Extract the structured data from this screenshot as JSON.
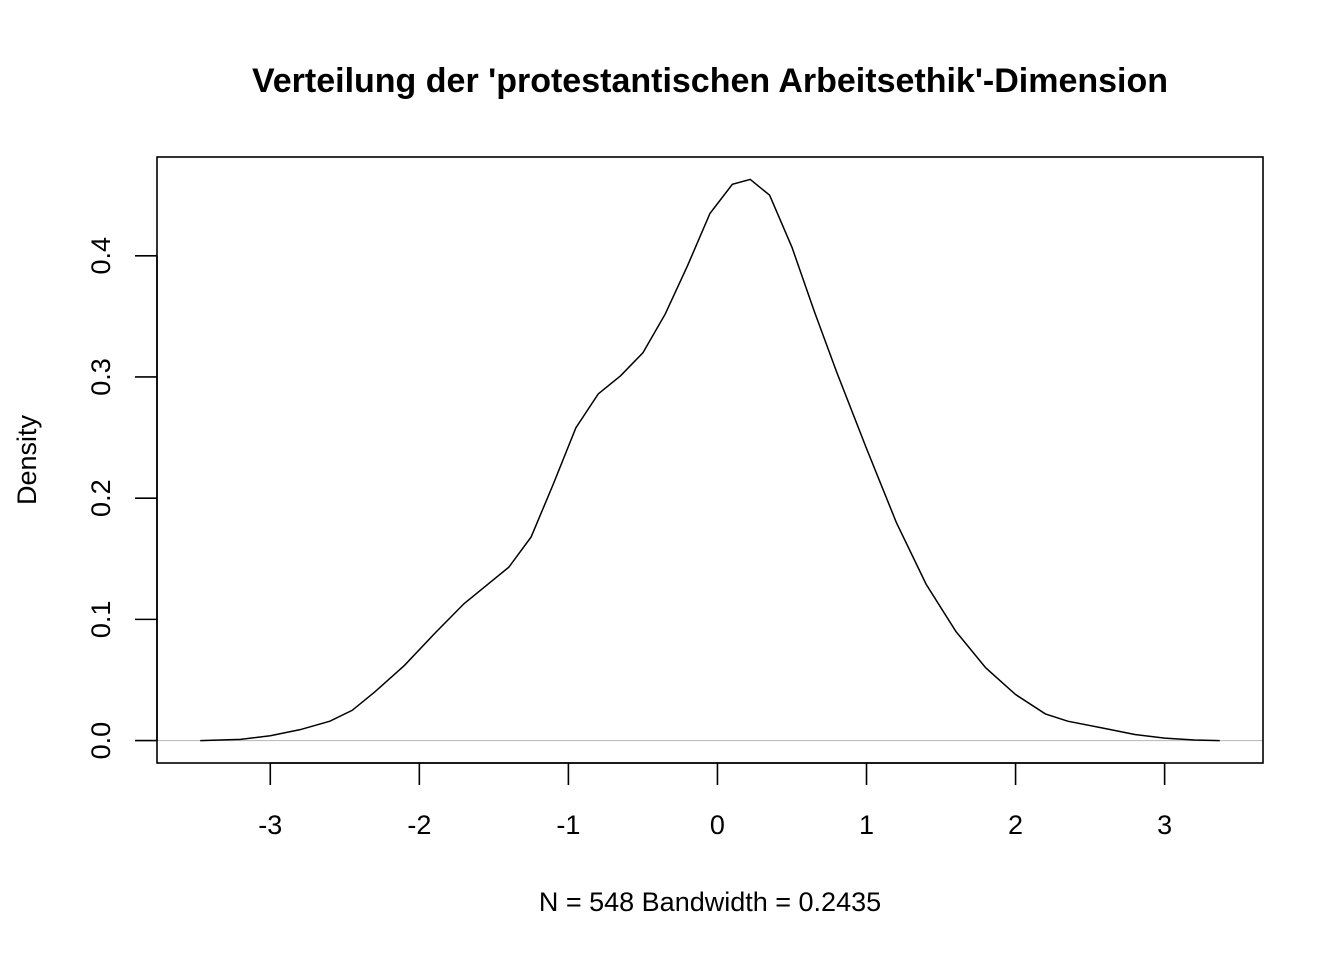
{
  "chart_data": {
    "type": "line",
    "title": "Verteilung der 'protestantischen Arbeitsethik'-Dimension",
    "xlabel": "N = 548   Bandwidth = 0.2435",
    "ylabel": "Density",
    "xlim": [
      -3.76,
      3.66
    ],
    "ylim": [
      -0.0185,
      0.4815
    ],
    "x_ticks": [
      -3,
      -2,
      -1,
      0,
      1,
      2,
      3
    ],
    "x_tick_labels": [
      "-3",
      "-2",
      "-1",
      "0",
      "1",
      "2",
      "3"
    ],
    "y_ticks": [
      0.0,
      0.1,
      0.2,
      0.3,
      0.4
    ],
    "y_tick_labels": [
      "0.0",
      "0.1",
      "0.2",
      "0.3",
      "0.4"
    ],
    "grid": false,
    "reference_line": {
      "y": 0,
      "color": "#bebebe"
    },
    "series": [
      {
        "color": "#000000",
        "x": [
          -3.47,
          -3.2,
          -3.0,
          -2.8,
          -2.6,
          -2.45,
          -2.3,
          -2.1,
          -1.9,
          -1.7,
          -1.55,
          -1.4,
          -1.25,
          -1.1,
          -0.95,
          -0.8,
          -0.65,
          -0.5,
          -0.35,
          -0.2,
          -0.05,
          0.1,
          0.22,
          0.35,
          0.5,
          0.65,
          0.8,
          1.0,
          1.2,
          1.4,
          1.6,
          1.8,
          2.0,
          2.2,
          2.35,
          2.6,
          2.8,
          3.0,
          3.2,
          3.37
        ],
        "y": [
          0.0,
          0.001,
          0.004,
          0.009,
          0.016,
          0.025,
          0.04,
          0.062,
          0.088,
          0.113,
          0.128,
          0.143,
          0.168,
          0.212,
          0.258,
          0.286,
          0.301,
          0.32,
          0.352,
          0.392,
          0.435,
          0.459,
          0.463,
          0.45,
          0.407,
          0.354,
          0.304,
          0.241,
          0.18,
          0.129,
          0.09,
          0.06,
          0.038,
          0.022,
          0.016,
          0.01,
          0.005,
          0.002,
          0.0005,
          0.0
        ]
      }
    ]
  }
}
